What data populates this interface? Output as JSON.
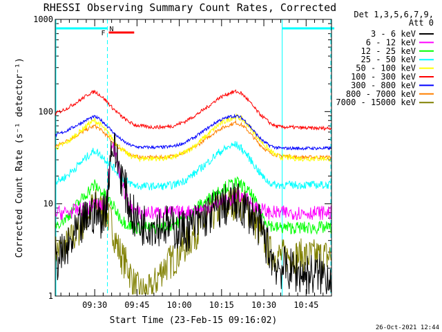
{
  "chart_data": {
    "type": "line",
    "title": "RHESSI Observing Summary Count Rates, Corrected",
    "xlabel": "Start Time (23-Feb-15 09:16:02)",
    "ylabel": "Corrected Count Rate (s⁻¹ detector⁻¹)",
    "yscale": "log",
    "ylim": [
      1,
      1000
    ],
    "xlim_minutes": [
      0,
      98
    ],
    "y_ticks": [
      {
        "value": 1,
        "label": "1"
      },
      {
        "value": 10,
        "label": "10"
      },
      {
        "value": 100,
        "label": "100"
      },
      {
        "value": 1000,
        "label": "1000"
      }
    ],
    "x_ticks": [
      {
        "minute": 14,
        "label": "09:30"
      },
      {
        "minute": 29,
        "label": "09:45"
      },
      {
        "minute": 44,
        "label": "10:00"
      },
      {
        "minute": 59,
        "label": "10:15"
      },
      {
        "minute": 74,
        "label": "10:30"
      },
      {
        "minute": 89,
        "label": "10:45"
      }
    ],
    "legend_header": [
      "Det 1,3,5,6,7,9,",
      "Att 0"
    ],
    "legend_placement": "right",
    "timestamp": "26-Oct-2021 12:44",
    "night_markers_minutes": [
      0,
      18.5,
      80.5,
      99
    ],
    "flag_bars": [
      {
        "label": "N",
        "color": "#00ffff",
        "segments": [
          [
            0,
            18.5
          ],
          [
            80.5,
            99
          ]
        ]
      },
      {
        "label": "F",
        "color": "#ff0000",
        "segments": [
          [
            19,
            28
          ]
        ]
      }
    ],
    "x": [
      0,
      4,
      8,
      12,
      14,
      16,
      18,
      20,
      22,
      24,
      26,
      28,
      30,
      34,
      38,
      42,
      46,
      50,
      54,
      58,
      62,
      64,
      66,
      68,
      70,
      72,
      74,
      76,
      78,
      80,
      82,
      86,
      90,
      94,
      98
    ],
    "series": [
      {
        "name": "3 - 6 keV",
        "color": "#000000",
        "values": [
          2.4,
          3,
          5,
          7.5,
          8,
          7,
          9,
          45,
          30,
          18,
          10,
          7,
          6,
          6,
          6,
          5.5,
          5,
          6,
          7.5,
          9,
          10,
          10,
          9.5,
          8.5,
          7.5,
          6,
          4.5,
          3,
          2.2,
          2,
          2,
          1.8,
          1.7,
          1.7,
          1.7
        ]
      },
      {
        "name": "6 - 12 keV",
        "color": "#ff00ff",
        "values": [
          8,
          8,
          8.5,
          9,
          10,
          9.5,
          9,
          50,
          28,
          15,
          10,
          8.5,
          8,
          8,
          8,
          8,
          8,
          8.5,
          9,
          10,
          11,
          12,
          12,
          11,
          10,
          9,
          8.5,
          8,
          8,
          8,
          8,
          8,
          8,
          8,
          8
        ]
      },
      {
        "name": "12 - 25 keV",
        "color": "#00ff00",
        "values": [
          6,
          7,
          10,
          14,
          16,
          14,
          12,
          10,
          8,
          6.5,
          6,
          5.5,
          5.5,
          5.5,
          5.5,
          6,
          7,
          9,
          11,
          14,
          16,
          17,
          16,
          14,
          12,
          9,
          7,
          6,
          5.5,
          5.5,
          5.5,
          5.5,
          5.5,
          5.5,
          5.5
        ]
      },
      {
        "name": "25 - 50 keV",
        "color": "#00ffff",
        "values": [
          17,
          20,
          26,
          34,
          38,
          34,
          30,
          26,
          22,
          19,
          17,
          16,
          15.5,
          15.5,
          15.5,
          16,
          18,
          22,
          28,
          36,
          42,
          44,
          40,
          34,
          28,
          23,
          19,
          17,
          16,
          16,
          16,
          16,
          16,
          16,
          16
        ]
      },
      {
        "name": "50 - 100 keV",
        "color": "#ffff00",
        "values": [
          40,
          46,
          58,
          74,
          80,
          72,
          62,
          52,
          44,
          38,
          34,
          32,
          31,
          31,
          31,
          32,
          36,
          44,
          56,
          72,
          84,
          88,
          84,
          74,
          62,
          52,
          44,
          38,
          34,
          32,
          32,
          31,
          31,
          31,
          31
        ]
      },
      {
        "name": "100 - 300 keV",
        "color": "#ff0000",
        "values": [
          95,
          108,
          128,
          156,
          165,
          150,
          132,
          112,
          98,
          86,
          78,
          72,
          70,
          68,
          68,
          70,
          78,
          92,
          112,
          140,
          160,
          165,
          158,
          138,
          116,
          98,
          86,
          76,
          70,
          68,
          68,
          67,
          66,
          66,
          66
        ]
      },
      {
        "name": "300 - 800 keV",
        "color": "#0000ff",
        "values": [
          55,
          62,
          72,
          84,
          88,
          82,
          72,
          62,
          54,
          48,
          44,
          42,
          41,
          41,
          41,
          42,
          46,
          54,
          66,
          80,
          88,
          90,
          86,
          76,
          64,
          54,
          47,
          43,
          41,
          40,
          40,
          40,
          40,
          40,
          40
        ]
      },
      {
        "name": "800 - 7000 keV",
        "color": "#ff8000",
        "values": [
          42,
          48,
          56,
          66,
          70,
          64,
          56,
          48,
          42,
          38,
          35,
          33,
          32,
          32,
          32,
          33,
          36,
          42,
          52,
          64,
          72,
          76,
          72,
          64,
          54,
          46,
          40,
          36,
          34,
          33,
          33,
          32,
          32,
          32,
          32
        ]
      },
      {
        "name": "7000 - 15000 keV",
        "color": "#808000",
        "values": [
          3,
          3.5,
          5,
          8,
          10,
          9,
          8,
          6,
          3.5,
          2.5,
          2,
          1.3,
          1.1,
          1.1,
          2,
          2.5,
          3.5,
          5,
          7,
          8.5,
          10,
          10.5,
          10,
          9,
          7,
          5.5,
          4,
          3,
          2.8,
          2.7,
          2.7,
          2.7,
          2.7,
          2.7,
          2.7
        ]
      }
    ]
  }
}
